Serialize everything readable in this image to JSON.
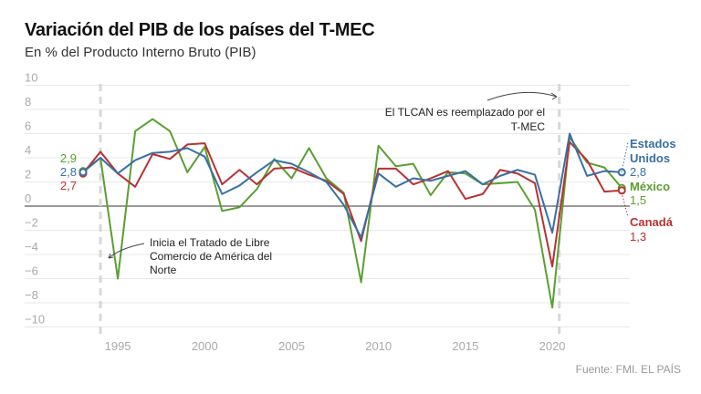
{
  "chart_data": {
    "type": "line",
    "title": "Variación del PIB de los países del T-MEC",
    "subtitle": "En % del Producto Interno Bruto (PIB)",
    "source": "Fuente: FMI. EL PAÍS",
    "xlabel": "",
    "ylabel": "",
    "xlim": [
      1993,
      2024
    ],
    "ylim": [
      -10,
      10
    ],
    "grid": true,
    "x_ticks": [
      "1995",
      "2000",
      "2005",
      "2010",
      "2015",
      "2020"
    ],
    "y_ticks": [
      "10",
      "8",
      "6",
      "4",
      "2",
      "0",
      "−2",
      "−4",
      "−6",
      "−8",
      "−10"
    ],
    "x": [
      1993,
      1994,
      1995,
      1996,
      1997,
      1998,
      1999,
      2000,
      2001,
      2002,
      2003,
      2004,
      2005,
      2006,
      2007,
      2008,
      2009,
      2010,
      2011,
      2012,
      2013,
      2014,
      2015,
      2016,
      2017,
      2018,
      2019,
      2020,
      2021,
      2022,
      2023,
      2024
    ],
    "series": [
      {
        "name": "Estados Unidos",
        "color": "#3a6ea5",
        "start_label": "2,8",
        "end_label": "2,8",
        "values": [
          2.8,
          4.0,
          2.7,
          3.8,
          4.4,
          4.5,
          4.8,
          4.1,
          1.0,
          1.7,
          2.8,
          3.8,
          3.5,
          2.8,
          2.0,
          0.1,
          -2.6,
          2.7,
          1.6,
          2.3,
          2.1,
          2.5,
          2.9,
          1.8,
          2.5,
          3.0,
          2.6,
          -2.2,
          6.0,
          2.5,
          2.9,
          2.8
        ]
      },
      {
        "name": "México",
        "color": "#5b9e32",
        "start_label": "2,9",
        "end_label": "1,5",
        "values": [
          2.9,
          4.0,
          -6.0,
          6.2,
          7.2,
          6.2,
          2.8,
          4.9,
          -0.4,
          -0.1,
          1.4,
          3.9,
          2.3,
          4.8,
          2.3,
          1.1,
          -6.3,
          5.0,
          3.3,
          3.5,
          0.9,
          2.8,
          2.7,
          1.8,
          1.9,
          2.0,
          -0.3,
          -8.4,
          5.7,
          3.6,
          3.2,
          1.5
        ]
      },
      {
        "name": "Canadá",
        "color": "#b83232",
        "start_label": "2,7",
        "end_label": "1,3",
        "values": [
          2.7,
          4.5,
          2.7,
          1.6,
          4.3,
          3.9,
          5.1,
          5.2,
          1.8,
          3.0,
          1.8,
          3.1,
          3.2,
          2.6,
          2.1,
          1.0,
          -2.9,
          3.1,
          3.1,
          1.8,
          2.3,
          2.9,
          0.6,
          1.0,
          3.0,
          2.7,
          1.9,
          -5.0,
          5.3,
          3.8,
          1.2,
          1.3
        ]
      }
    ],
    "annotations": [
      {
        "year": 1994,
        "text_lines": [
          "Inicia el Tratado de Libre",
          "Comercio de América del",
          "Norte"
        ]
      },
      {
        "year": 2020,
        "text_lines": [
          "El TLCAN es reemplazado por el",
          "T-MEC"
        ]
      }
    ],
    "end_names": {
      "us": [
        "Estados",
        "Unidos"
      ],
      "mx": "México",
      "ca": "Canadá"
    }
  }
}
